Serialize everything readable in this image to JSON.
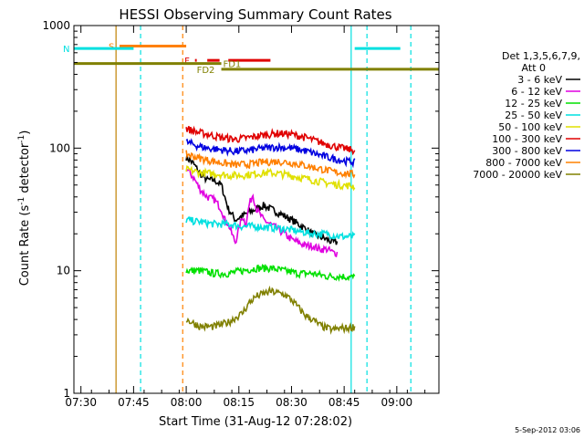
{
  "chart_data": {
    "type": "line",
    "title": "HESSI Observing Summary Count Rates",
    "xlabel": "Start Time (31-Aug-12 07:28:02)",
    "ylabel_main": "Count Rate (s",
    "ylabel_sup1": "-1",
    "ylabel_mid": " detector",
    "ylabel_sup2": "-1",
    "ylabel_end": ")",
    "yscale": "log",
    "ylim": [
      1,
      1000
    ],
    "xlim_minutes": [
      0,
      104
    ],
    "x_ticks": [
      {
        "label": "07:30",
        "minute": 2
      },
      {
        "label": "07:45",
        "minute": 17
      },
      {
        "label": "08:00",
        "minute": 32
      },
      {
        "label": "08:15",
        "minute": 47
      },
      {
        "label": "08:30",
        "minute": 62
      },
      {
        "label": "08:45",
        "minute": 77
      },
      {
        "label": "09:00",
        "minute": 92
      }
    ],
    "y_ticks": [
      {
        "label": "1",
        "value": 1
      },
      {
        "label": "10",
        "value": 10
      },
      {
        "label": "100",
        "value": 100
      },
      {
        "label": "1000",
        "value": 1000
      }
    ],
    "legend_header_1": "Det 1,3,5,6,7,9,",
    "legend_header_2": "Att 0",
    "series": [
      {
        "name": "3 - 6 keV",
        "color": "#000000",
        "points": [
          [
            32,
            85
          ],
          [
            34,
            75
          ],
          [
            36,
            62
          ],
          [
            38,
            55
          ],
          [
            40,
            55
          ],
          [
            42,
            50
          ],
          [
            43,
            40
          ],
          [
            44,
            32
          ],
          [
            46,
            26
          ],
          [
            48,
            28
          ],
          [
            50,
            30
          ],
          [
            52,
            32
          ],
          [
            54,
            34
          ],
          [
            56,
            32
          ],
          [
            58,
            30
          ],
          [
            60,
            28
          ],
          [
            62,
            26
          ],
          [
            64,
            24
          ],
          [
            66,
            22
          ],
          [
            68,
            20
          ],
          [
            70,
            19
          ],
          [
            72,
            18
          ],
          [
            74,
            17
          ],
          [
            75,
            17
          ]
        ]
      },
      {
        "name": "6 - 12 keV",
        "color": "#e000e0",
        "points": [
          [
            32,
            68
          ],
          [
            34,
            58
          ],
          [
            36,
            46
          ],
          [
            38,
            40
          ],
          [
            40,
            38
          ],
          [
            42,
            32
          ],
          [
            43,
            26
          ],
          [
            44,
            24
          ],
          [
            45,
            20
          ],
          [
            46,
            17
          ],
          [
            47,
            22
          ],
          [
            48,
            28
          ],
          [
            49,
            24
          ],
          [
            50,
            35
          ],
          [
            51,
            42
          ],
          [
            52,
            32
          ],
          [
            54,
            26
          ],
          [
            56,
            24
          ],
          [
            58,
            22
          ],
          [
            60,
            20
          ],
          [
            62,
            18
          ],
          [
            64,
            17
          ],
          [
            66,
            16
          ],
          [
            68,
            16
          ],
          [
            70,
            15
          ],
          [
            72,
            15
          ],
          [
            74,
            14
          ],
          [
            75,
            14
          ]
        ]
      },
      {
        "name": "12 - 25 keV",
        "color": "#00e000",
        "points": [
          [
            32,
            10
          ],
          [
            36,
            10
          ],
          [
            40,
            9.5
          ],
          [
            44,
            9.5
          ],
          [
            48,
            10
          ],
          [
            52,
            10.5
          ],
          [
            56,
            10.5
          ],
          [
            60,
            10
          ],
          [
            64,
            9.5
          ],
          [
            68,
            9.5
          ],
          [
            72,
            9
          ],
          [
            76,
            9
          ],
          [
            80,
            8.8
          ]
        ]
      },
      {
        "name": "25 - 50 keV",
        "color": "#00e0e0",
        "points": [
          [
            32,
            26
          ],
          [
            36,
            25
          ],
          [
            40,
            24
          ],
          [
            44,
            24
          ],
          [
            48,
            23
          ],
          [
            52,
            23
          ],
          [
            56,
            22.5
          ],
          [
            60,
            22
          ],
          [
            64,
            21
          ],
          [
            68,
            20
          ],
          [
            72,
            20
          ],
          [
            76,
            19
          ],
          [
            80,
            19
          ]
        ]
      },
      {
        "name": "50 - 100 keV",
        "color": "#e0e000",
        "points": [
          [
            32,
            67
          ],
          [
            36,
            63
          ],
          [
            40,
            62
          ],
          [
            44,
            60
          ],
          [
            48,
            60
          ],
          [
            52,
            62
          ],
          [
            56,
            63
          ],
          [
            60,
            61
          ],
          [
            64,
            58
          ],
          [
            68,
            55
          ],
          [
            72,
            52
          ],
          [
            76,
            50
          ],
          [
            80,
            49
          ]
        ]
      },
      {
        "name": "100 - 300 keV",
        "color": "#e00000",
        "points": [
          [
            32,
            145
          ],
          [
            35,
            135
          ],
          [
            38,
            130
          ],
          [
            42,
            122
          ],
          [
            46,
            118
          ],
          [
            50,
            122
          ],
          [
            54,
            128
          ],
          [
            58,
            132
          ],
          [
            62,
            130
          ],
          [
            66,
            122
          ],
          [
            70,
            112
          ],
          [
            74,
            104
          ],
          [
            78,
            98
          ],
          [
            80,
            96
          ]
        ]
      },
      {
        "name": "300 - 800 keV",
        "color": "#0000e0",
        "points": [
          [
            32,
            112
          ],
          [
            35,
            105
          ],
          [
            38,
            100
          ],
          [
            42,
            97
          ],
          [
            46,
            94
          ],
          [
            50,
            96
          ],
          [
            54,
            100
          ],
          [
            58,
            102
          ],
          [
            62,
            100
          ],
          [
            66,
            95
          ],
          [
            70,
            88
          ],
          [
            74,
            82
          ],
          [
            78,
            78
          ],
          [
            80,
            77
          ]
        ]
      },
      {
        "name": "800 - 7000 keV",
        "color": "#ff8000",
        "points": [
          [
            32,
            90
          ],
          [
            35,
            84
          ],
          [
            38,
            80
          ],
          [
            42,
            76
          ],
          [
            46,
            73
          ],
          [
            50,
            74
          ],
          [
            54,
            77
          ],
          [
            58,
            78
          ],
          [
            62,
            76
          ],
          [
            66,
            72
          ],
          [
            70,
            68
          ],
          [
            74,
            64
          ],
          [
            78,
            62
          ],
          [
            80,
            61
          ]
        ]
      },
      {
        "name": "7000 - 20000 keV",
        "color": "#808000",
        "points": [
          [
            32,
            4
          ],
          [
            36,
            3.5
          ],
          [
            40,
            3.5
          ],
          [
            44,
            3.8
          ],
          [
            48,
            4.5
          ],
          [
            50,
            5.5
          ],
          [
            52,
            6.2
          ],
          [
            54,
            6.5
          ],
          [
            56,
            6.8
          ],
          [
            58,
            6.6
          ],
          [
            60,
            6.4
          ],
          [
            62,
            5.8
          ],
          [
            64,
            5
          ],
          [
            66,
            4.3
          ],
          [
            68,
            4
          ],
          [
            70,
            3.6
          ],
          [
            72,
            3.4
          ],
          [
            74,
            3.3
          ],
          [
            76,
            3.4
          ],
          [
            78,
            3.4
          ],
          [
            80,
            3.5
          ]
        ]
      }
    ],
    "annotations": [
      {
        "label": "S",
        "color": "#ff8000",
        "value": 680,
        "from": 13,
        "to": 32
      },
      {
        "label": "N",
        "color": "#00e0e0",
        "value": 650,
        "from": 0,
        "to": 17
      },
      {
        "label": "",
        "color": "#00e0e0",
        "value": 650,
        "from": 80,
        "to": 93
      },
      {
        "label": "F",
        "color": "#e00000",
        "value": 520,
        "from": 34.5,
        "to": 35,
        "label_at": 31.5
      },
      {
        "label": "",
        "color": "#e00000",
        "value": 520,
        "from": 38,
        "to": 41.5
      },
      {
        "label": "",
        "color": "#e00000",
        "value": 520,
        "from": 44,
        "to": 56
      },
      {
        "label": "FD1",
        "color": "#808000",
        "value": 490,
        "from": 0,
        "to": 42,
        "label_at": 42.5
      },
      {
        "label": "FD2",
        "color": "#808000",
        "value": 440,
        "from": 42,
        "to": 104,
        "label_at": 35
      }
    ],
    "vertical_lines": [
      {
        "minute": 12,
        "color": "#c08000",
        "style": "solid"
      },
      {
        "minute": 19,
        "color": "#00e0e0",
        "style": "dashed"
      },
      {
        "minute": 31,
        "color": "#ff8000",
        "style": "dashed"
      },
      {
        "minute": 79,
        "color": "#00e0e0",
        "style": "solid"
      },
      {
        "minute": 83.5,
        "color": "#00e0e0",
        "style": "dashed"
      },
      {
        "minute": 96,
        "color": "#00e0e0",
        "style": "dashed"
      }
    ]
  },
  "footer": {
    "date_stamp": "5-Sep-2012 03:06"
  }
}
